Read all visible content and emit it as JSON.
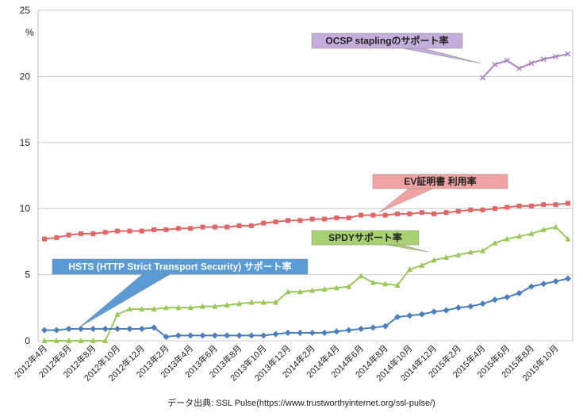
{
  "chart_data": {
    "type": "line",
    "y_unit": "%",
    "source": "データ出典: SSL Pulse(https://www.trustworthyinternet.org/ssl-pulse/)",
    "ylim": [
      0,
      25
    ],
    "yticks": [
      0,
      5,
      10,
      15,
      20,
      25
    ],
    "grid": true,
    "categories": [
      "2012年4月",
      null,
      "2012年6月",
      null,
      "2012年8月",
      null,
      "2012年10月",
      null,
      "2012年12月",
      null,
      "2013年2月",
      null,
      "2013年4月",
      null,
      "2013年6月",
      null,
      "2013年8月",
      null,
      "2013年10月",
      null,
      "2013年12月",
      null,
      "2014年2月",
      null,
      "2014年4月",
      null,
      "2014年6月",
      null,
      "2014年8月",
      null,
      "2014年10月",
      null,
      "2014年12月",
      null,
      "2015年2月",
      null,
      "2015年4月",
      null,
      "2015年6月",
      null,
      "2015年8月",
      null,
      "2015年10月",
      null
    ],
    "series": [
      {
        "name": "OCSP staplingのサポート率",
        "color": "#a884c4",
        "marker": "x",
        "values": [
          null,
          null,
          null,
          null,
          null,
          null,
          null,
          null,
          null,
          null,
          null,
          null,
          null,
          null,
          null,
          null,
          null,
          null,
          null,
          null,
          null,
          null,
          null,
          null,
          null,
          null,
          null,
          null,
          null,
          null,
          null,
          null,
          null,
          null,
          null,
          null,
          19.9,
          20.9,
          21.2,
          20.6,
          21.0,
          21.3,
          21.5,
          21.7
        ]
      },
      {
        "name": "EV証明書 利用率",
        "color": "#e06666",
        "marker": "square",
        "values": [
          7.7,
          7.8,
          8.0,
          8.1,
          8.1,
          8.2,
          8.3,
          8.3,
          8.3,
          8.4,
          8.4,
          8.5,
          8.5,
          8.6,
          8.6,
          8.6,
          8.7,
          8.7,
          8.9,
          9.0,
          9.1,
          9.1,
          9.2,
          9.2,
          9.3,
          9.3,
          9.5,
          9.5,
          9.5,
          9.6,
          9.6,
          9.7,
          9.6,
          9.7,
          9.8,
          9.9,
          9.9,
          10.0,
          10.1,
          10.2,
          10.2,
          10.3,
          10.3,
          10.4
        ]
      },
      {
        "name": "SPDYサポート率",
        "color": "#9bc85a",
        "marker": "triangle",
        "values": [
          0,
          0,
          0,
          0,
          0,
          0,
          2.0,
          2.4,
          2.4,
          2.4,
          2.5,
          2.5,
          2.5,
          2.6,
          2.6,
          2.7,
          2.8,
          2.9,
          2.9,
          2.9,
          3.7,
          3.7,
          3.8,
          3.9,
          4.0,
          4.1,
          4.9,
          4.4,
          4.3,
          4.2,
          5.4,
          5.7,
          6.1,
          6.3,
          6.5,
          6.7,
          6.8,
          7.4,
          7.7,
          7.9,
          8.1,
          8.4,
          8.6,
          7.7
        ]
      },
      {
        "name": "HSTS (HTTP Strict Transport Security) サポート率",
        "color": "#4a7ebf",
        "marker": "diamond",
        "values": [
          0.8,
          0.8,
          0.9,
          0.9,
          0.9,
          0.9,
          0.9,
          0.9,
          0.9,
          1.0,
          0.3,
          0.4,
          0.4,
          0.4,
          0.4,
          0.4,
          0.4,
          0.4,
          0.4,
          0.5,
          0.6,
          0.6,
          0.6,
          0.6,
          0.7,
          0.8,
          0.9,
          1.0,
          1.1,
          1.8,
          1.9,
          2.0,
          2.2,
          2.3,
          2.5,
          2.6,
          2.8,
          3.1,
          3.3,
          3.6,
          4.1,
          4.3,
          4.5,
          4.7
        ]
      }
    ]
  }
}
